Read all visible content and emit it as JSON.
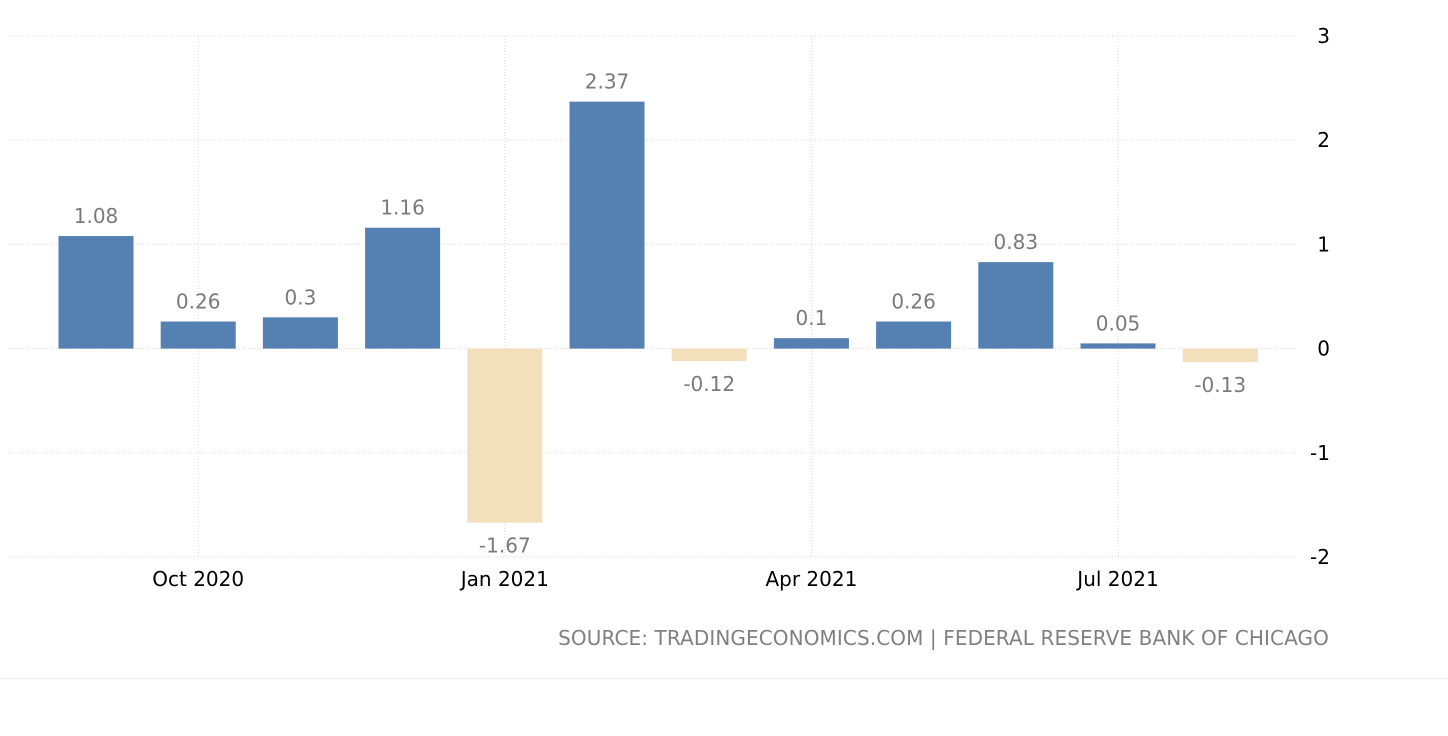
{
  "chart_data": {
    "type": "bar",
    "title": "",
    "xlabel": "",
    "ylabel": "",
    "categories": [
      "Sep 2020",
      "Oct 2020",
      "Nov 2020",
      "Dec 2020",
      "Jan 2021",
      "Feb 2021",
      "Mar 2021",
      "Apr 2021",
      "May 2021",
      "Jun 2021",
      "Jul 2021",
      "Aug 2021"
    ],
    "values": [
      1.08,
      0.26,
      0.3,
      1.16,
      -1.67,
      2.37,
      -0.12,
      0.1,
      0.26,
      0.83,
      0.05,
      -0.13
    ],
    "value_labels": [
      "1.08",
      "0.26",
      "0.3",
      "1.16",
      "-1.67",
      "2.37",
      "-0.12",
      "0.1",
      "0.26",
      "0.83",
      "0.05",
      "-0.13"
    ],
    "x_ticks": [
      {
        "label": "Oct 2020",
        "category": "Oct 2020"
      },
      {
        "label": "Jan 2021",
        "category": "Jan 2021"
      },
      {
        "label": "Apr 2021",
        "category": "Apr 2021"
      },
      {
        "label": "Jul 2021",
        "category": "Jul 2021"
      }
    ],
    "y_ticks": [
      {
        "value": 3,
        "label": "3"
      },
      {
        "value": 2,
        "label": "2"
      },
      {
        "value": 1,
        "label": "1"
      },
      {
        "value": 0,
        "label": "0"
      },
      {
        "value": -1,
        "label": "-1"
      },
      {
        "value": -2,
        "label": "-2"
      }
    ],
    "ylim": [
      -2,
      3
    ],
    "y_axis_side": "right",
    "grid": true,
    "colors": {
      "positive": "#5580b2",
      "negative": "#f2dfbb",
      "grid": "#d9d9d9",
      "value_label": "#7a7a7a",
      "tick_label": "#000000"
    }
  },
  "source": "SOURCE: TRADINGECONOMICS.COM | FEDERAL RESERVE BANK OF CHICAGO"
}
